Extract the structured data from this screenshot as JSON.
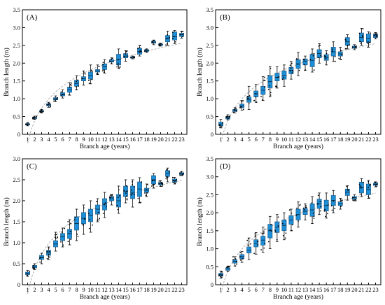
{
  "chart_data": [
    {
      "type": "box",
      "panel_label": "(A)",
      "xlabel": "Branch age (years)",
      "ylabel": "Branch length (m)",
      "categories": [
        "1",
        "2",
        "3",
        "4",
        "5",
        "6",
        "7",
        "8",
        "9",
        "10",
        "11",
        "12",
        "13",
        "14",
        "15",
        "16",
        "17",
        "18",
        "19",
        "20",
        "21",
        "22",
        "23"
      ],
      "yticks": [
        "0",
        "0.5",
        "1.0",
        "1.5",
        "2.0",
        "2.5",
        "3.0",
        "3.5"
      ],
      "ylim": [
        0,
        3.5
      ],
      "trend_line": true,
      "box_color": "#1e8fd6",
      "boxes": [
        {
          "q1": 0.26,
          "q3": 0.3,
          "median": 0.28,
          "min": 0.24,
          "max": 0.33
        },
        {
          "q1": 0.44,
          "q3": 0.48,
          "median": 0.46,
          "min": 0.42,
          "max": 0.51
        },
        {
          "q1": 0.63,
          "q3": 0.67,
          "median": 0.65,
          "min": 0.6,
          "max": 0.7
        },
        {
          "q1": 0.8,
          "q3": 0.86,
          "median": 0.83,
          "min": 0.76,
          "max": 0.9
        },
        {
          "q1": 0.97,
          "q3": 1.03,
          "median": 1.0,
          "min": 0.92,
          "max": 1.08
        },
        {
          "q1": 1.08,
          "q3": 1.17,
          "median": 1.12,
          "min": 1.02,
          "max": 1.25
        },
        {
          "q1": 1.18,
          "q3": 1.33,
          "median": 1.25,
          "min": 1.1,
          "max": 1.45
        },
        {
          "q1": 1.35,
          "q3": 1.52,
          "median": 1.43,
          "min": 1.25,
          "max": 1.65
        },
        {
          "q1": 1.5,
          "q3": 1.62,
          "median": 1.56,
          "min": 1.38,
          "max": 1.78
        },
        {
          "q1": 1.55,
          "q3": 1.75,
          "median": 1.65,
          "min": 1.42,
          "max": 1.95
        },
        {
          "q1": 1.75,
          "q3": 1.82,
          "median": 1.78,
          "min": 1.68,
          "max": 1.95
        },
        {
          "q1": 1.82,
          "q3": 1.98,
          "median": 1.9,
          "min": 1.72,
          "max": 2.1
        },
        {
          "q1": 2.03,
          "q3": 2.1,
          "median": 2.06,
          "min": 1.98,
          "max": 2.15
        },
        {
          "q1": 1.95,
          "q3": 2.25,
          "median": 2.1,
          "min": 1.85,
          "max": 2.4
        },
        {
          "q1": 2.15,
          "q3": 2.27,
          "median": 2.2,
          "min": 2.05,
          "max": 2.35
        },
        {
          "q1": 2.14,
          "q3": 2.18,
          "median": 2.16,
          "min": 2.12,
          "max": 2.2
        },
        {
          "q1": 2.25,
          "q3": 2.42,
          "median": 2.33,
          "min": 2.2,
          "max": 2.5
        },
        {
          "q1": 2.33,
          "q3": 2.38,
          "median": 2.35,
          "min": 2.3,
          "max": 2.4
        },
        {
          "q1": 2.56,
          "q3": 2.62,
          "median": 2.59,
          "min": 2.52,
          "max": 2.65
        },
        {
          "q1": 2.5,
          "q3": 2.54,
          "median": 2.52,
          "min": 2.48,
          "max": 2.56
        },
        {
          "q1": 2.6,
          "q3": 2.78,
          "median": 2.68,
          "min": 2.5,
          "max": 2.9
        },
        {
          "q1": 2.65,
          "q3": 2.88,
          "median": 2.75,
          "min": 2.55,
          "max": 2.92
        },
        {
          "q1": 2.75,
          "q3": 2.84,
          "median": 2.8,
          "min": 2.7,
          "max": 2.9
        }
      ]
    },
    {
      "type": "box",
      "panel_label": "(B)",
      "xlabel": "Branch age (years)",
      "ylabel": "Branch length (m)",
      "categories": [
        "1",
        "2",
        "3",
        "4",
        "5",
        "6",
        "7",
        "8",
        "9",
        "10",
        "11",
        "12",
        "13",
        "14",
        "15",
        "16",
        "17",
        "18",
        "19",
        "20",
        "21",
        "22",
        "23"
      ],
      "yticks": [
        "0",
        "0.5",
        "1.0",
        "1.5",
        "2.0",
        "2.5",
        "3.0",
        "3.5"
      ],
      "ylim": [
        0,
        3.5
      ],
      "trend_line": true,
      "box_color": "#1e8fd6",
      "boxes": [
        {
          "q1": 0.24,
          "q3": 0.34,
          "median": 0.29,
          "min": 0.18,
          "max": 0.42
        },
        {
          "q1": 0.43,
          "q3": 0.5,
          "median": 0.46,
          "min": 0.4,
          "max": 0.55
        },
        {
          "q1": 0.64,
          "q3": 0.7,
          "median": 0.67,
          "min": 0.6,
          "max": 0.75
        },
        {
          "q1": 0.75,
          "q3": 0.85,
          "median": 0.8,
          "min": 0.68,
          "max": 0.95
        },
        {
          "q1": 0.9,
          "q3": 1.05,
          "median": 0.97,
          "min": 0.7,
          "max": 1.35
        },
        {
          "q1": 1.05,
          "q3": 1.22,
          "median": 1.14,
          "min": 0.9,
          "max": 1.4
        },
        {
          "q1": 1.12,
          "q3": 1.35,
          "median": 1.24,
          "min": 0.95,
          "max": 1.62
        },
        {
          "q1": 1.3,
          "q3": 1.65,
          "median": 1.48,
          "min": 1.05,
          "max": 1.9
        },
        {
          "q1": 1.5,
          "q3": 1.72,
          "median": 1.6,
          "min": 1.3,
          "max": 1.9
        },
        {
          "q1": 1.55,
          "q3": 1.78,
          "median": 1.65,
          "min": 1.35,
          "max": 1.95
        },
        {
          "q1": 1.7,
          "q3": 1.88,
          "median": 1.8,
          "min": 1.55,
          "max": 2.05
        },
        {
          "q1": 1.85,
          "q3": 2.1,
          "median": 1.98,
          "min": 1.65,
          "max": 2.3
        },
        {
          "q1": 1.95,
          "q3": 2.12,
          "median": 2.05,
          "min": 1.8,
          "max": 2.2
        },
        {
          "q1": 1.9,
          "q3": 2.25,
          "median": 2.08,
          "min": 1.75,
          "max": 2.4
        },
        {
          "q1": 2.15,
          "q3": 2.38,
          "median": 2.27,
          "min": 2.0,
          "max": 2.55
        },
        {
          "q1": 2.08,
          "q3": 2.24,
          "median": 2.16,
          "min": 1.95,
          "max": 2.35
        },
        {
          "q1": 2.2,
          "q3": 2.45,
          "median": 2.32,
          "min": 2.05,
          "max": 2.6
        },
        {
          "q1": 2.2,
          "q3": 2.32,
          "median": 2.26,
          "min": 2.1,
          "max": 2.45
        },
        {
          "q1": 2.5,
          "q3": 2.72,
          "median": 2.6,
          "min": 2.4,
          "max": 2.8
        },
        {
          "q1": 2.42,
          "q3": 2.48,
          "median": 2.45,
          "min": 2.38,
          "max": 2.52
        },
        {
          "q1": 2.6,
          "q3": 2.85,
          "median": 2.72,
          "min": 2.5,
          "max": 2.98
        },
        {
          "q1": 2.58,
          "q3": 2.82,
          "median": 2.7,
          "min": 2.45,
          "max": 2.88
        },
        {
          "q1": 2.72,
          "q3": 2.82,
          "median": 2.77,
          "min": 2.68,
          "max": 2.86
        }
      ]
    },
    {
      "type": "box",
      "panel_label": "(C)",
      "xlabel": "Branch age (years)",
      "ylabel": "Branch length (m)",
      "categories": [
        "1",
        "2",
        "3",
        "4",
        "5",
        "6",
        "7",
        "8",
        "9",
        "10",
        "11",
        "12",
        "13",
        "14",
        "15",
        "16",
        "17",
        "18",
        "19",
        "20",
        "21",
        "22",
        "23"
      ],
      "yticks": [
        "0",
        "0.5",
        "1.0",
        "1.5",
        "2.0",
        "2.5",
        "3.0"
      ],
      "ylim": [
        0,
        3.0
      ],
      "trend_line": true,
      "box_color": "#1e8fd6",
      "boxes": [
        {
          "q1": 0.24,
          "q3": 0.3,
          "median": 0.27,
          "min": 0.2,
          "max": 0.34
        },
        {
          "q1": 0.4,
          "q3": 0.46,
          "median": 0.43,
          "min": 0.36,
          "max": 0.5
        },
        {
          "q1": 0.6,
          "q3": 0.7,
          "median": 0.65,
          "min": 0.5,
          "max": 0.75
        },
        {
          "q1": 0.7,
          "q3": 0.82,
          "median": 0.76,
          "min": 0.6,
          "max": 0.9
        },
        {
          "q1": 0.9,
          "q3": 1.05,
          "median": 0.97,
          "min": 0.8,
          "max": 1.25
        },
        {
          "q1": 1.05,
          "q3": 1.22,
          "median": 1.14,
          "min": 0.9,
          "max": 1.35
        },
        {
          "q1": 1.1,
          "q3": 1.32,
          "median": 1.22,
          "min": 0.95,
          "max": 1.55
        },
        {
          "q1": 1.3,
          "q3": 1.62,
          "median": 1.46,
          "min": 1.05,
          "max": 1.8
        },
        {
          "q1": 1.45,
          "q3": 1.72,
          "median": 1.58,
          "min": 1.2,
          "max": 1.9
        },
        {
          "q1": 1.5,
          "q3": 1.8,
          "median": 1.65,
          "min": 1.25,
          "max": 2.0
        },
        {
          "q1": 1.68,
          "q3": 1.9,
          "median": 1.8,
          "min": 1.5,
          "max": 2.05
        },
        {
          "q1": 1.78,
          "q3": 2.05,
          "median": 1.92,
          "min": 1.6,
          "max": 2.2
        },
        {
          "q1": 2.0,
          "q3": 2.1,
          "median": 2.05,
          "min": 1.9,
          "max": 2.15
        },
        {
          "q1": 1.85,
          "q3": 2.15,
          "median": 2.0,
          "min": 1.7,
          "max": 2.35
        },
        {
          "q1": 2.1,
          "q3": 2.35,
          "median": 2.22,
          "min": 1.95,
          "max": 2.5
        },
        {
          "q1": 2.05,
          "q3": 2.35,
          "median": 2.2,
          "min": 1.85,
          "max": 2.5
        },
        {
          "q1": 2.1,
          "q3": 2.45,
          "median": 2.28,
          "min": 1.95,
          "max": 2.55
        },
        {
          "q1": 2.2,
          "q3": 2.3,
          "median": 2.25,
          "min": 2.1,
          "max": 2.4
        },
        {
          "q1": 2.4,
          "q3": 2.6,
          "median": 2.5,
          "min": 2.3,
          "max": 2.65
        },
        {
          "q1": 2.38,
          "q3": 2.44,
          "median": 2.41,
          "min": 2.34,
          "max": 2.48
        },
        {
          "q1": 2.58,
          "q3": 2.72,
          "median": 2.65,
          "min": 2.45,
          "max": 2.78
        },
        {
          "q1": 2.44,
          "q3": 2.52,
          "median": 2.48,
          "min": 2.4,
          "max": 2.56
        },
        {
          "q1": 2.62,
          "q3": 2.67,
          "median": 2.65,
          "min": 2.6,
          "max": 2.7
        }
      ]
    },
    {
      "type": "box",
      "panel_label": "(D)",
      "xlabel": "Branch age (years)",
      "ylabel": "Branch length (m)",
      "categories": [
        "1",
        "2",
        "3",
        "4",
        "5",
        "6",
        "7",
        "8",
        "9",
        "10",
        "11",
        "12",
        "13",
        "14",
        "15",
        "16",
        "17",
        "18",
        "19",
        "20",
        "21",
        "22",
        "23"
      ],
      "yticks": [
        "0",
        "0.5",
        "1.0",
        "1.5",
        "2.0",
        "2.5",
        "3.0",
        "3.5"
      ],
      "ylim": [
        0,
        3.5
      ],
      "trend_line": true,
      "box_color": "#1e8fd6",
      "boxes": [
        {
          "q1": 0.24,
          "q3": 0.32,
          "median": 0.28,
          "min": 0.18,
          "max": 0.38
        },
        {
          "q1": 0.4,
          "q3": 0.47,
          "median": 0.44,
          "min": 0.36,
          "max": 0.52
        },
        {
          "q1": 0.6,
          "q3": 0.7,
          "median": 0.65,
          "min": 0.52,
          "max": 0.78
        },
        {
          "q1": 0.72,
          "q3": 0.84,
          "median": 0.78,
          "min": 0.62,
          "max": 0.92
        },
        {
          "q1": 0.88,
          "q3": 1.05,
          "median": 0.96,
          "min": 0.7,
          "max": 1.3
        },
        {
          "q1": 1.05,
          "q3": 1.25,
          "median": 1.15,
          "min": 0.85,
          "max": 1.45
        },
        {
          "q1": 1.1,
          "q3": 1.35,
          "median": 1.24,
          "min": 0.9,
          "max": 1.6
        },
        {
          "q1": 1.3,
          "q3": 1.68,
          "median": 1.5,
          "min": 1.0,
          "max": 1.9
        },
        {
          "q1": 1.45,
          "q3": 1.75,
          "median": 1.6,
          "min": 1.2,
          "max": 1.95
        },
        {
          "q1": 1.5,
          "q3": 1.8,
          "median": 1.65,
          "min": 1.25,
          "max": 2.0
        },
        {
          "q1": 1.68,
          "q3": 1.92,
          "median": 1.8,
          "min": 1.5,
          "max": 2.1
        },
        {
          "q1": 1.8,
          "q3": 2.1,
          "median": 1.95,
          "min": 1.6,
          "max": 2.3
        },
        {
          "q1": 1.95,
          "q3": 2.12,
          "median": 2.04,
          "min": 1.8,
          "max": 2.25
        },
        {
          "q1": 1.9,
          "q3": 2.25,
          "median": 2.08,
          "min": 1.7,
          "max": 2.45
        },
        {
          "q1": 2.12,
          "q3": 2.38,
          "median": 2.25,
          "min": 1.95,
          "max": 2.55
        },
        {
          "q1": 2.05,
          "q3": 2.35,
          "median": 2.2,
          "min": 1.85,
          "max": 2.55
        },
        {
          "q1": 2.2,
          "q3": 2.48,
          "median": 2.34,
          "min": 2.0,
          "max": 2.62
        },
        {
          "q1": 2.2,
          "q3": 2.3,
          "median": 2.25,
          "min": 2.1,
          "max": 2.4
        },
        {
          "q1": 2.48,
          "q3": 2.66,
          "median": 2.57,
          "min": 2.35,
          "max": 2.75
        },
        {
          "q1": 2.38,
          "q3": 2.45,
          "median": 2.42,
          "min": 2.33,
          "max": 2.5
        },
        {
          "q1": 2.55,
          "q3": 2.85,
          "median": 2.7,
          "min": 2.45,
          "max": 2.95
        },
        {
          "q1": 2.5,
          "q3": 2.8,
          "median": 2.65,
          "min": 2.4,
          "max": 2.9
        },
        {
          "q1": 2.76,
          "q3": 2.82,
          "median": 2.79,
          "min": 2.72,
          "max": 2.86
        }
      ]
    }
  ]
}
